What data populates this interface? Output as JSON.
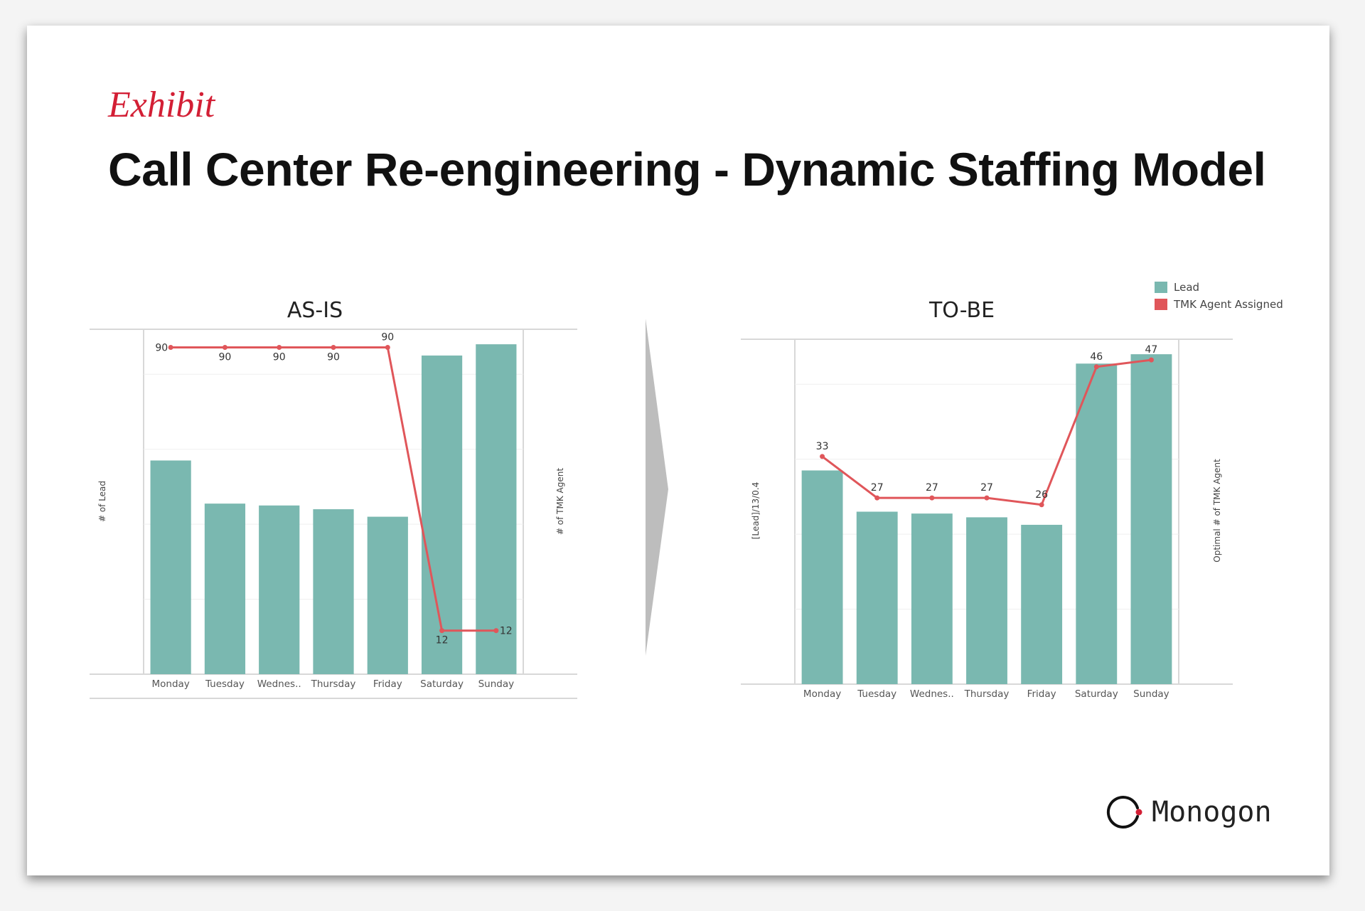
{
  "exhibit_label": "Exhibit",
  "title": "Call Center Re-engineering - Dynamic Staffing Model",
  "brand": "Monogon",
  "colors": {
    "bar": "#7ab8b0",
    "line": "#e0565a",
    "accent": "#d31f35"
  },
  "chart_data": [
    {
      "type": "bar+line",
      "title": "AS-IS",
      "categories": [
        "Monday",
        "Tuesday",
        "Wednes..",
        "Thursday",
        "Friday",
        "Saturday",
        "Sunday"
      ],
      "bar_series": {
        "name": "# of Lead",
        "values": [
          57,
          45.5,
          45,
          44,
          42,
          85,
          88
        ]
      },
      "line_series": {
        "name": "# of TMK Agent",
        "values": [
          90,
          90,
          90,
          90,
          90,
          12,
          12
        ]
      },
      "line_labels": [
        "90",
        "90",
        "90",
        "90",
        "90",
        "12",
        "12"
      ],
      "ylabel_left": "# of Lead",
      "ylabel_right": "# of TMK Agent",
      "ylim": [
        0,
        92
      ],
      "line_ylim": [
        0,
        95
      ]
    },
    {
      "type": "bar+line",
      "title": "TO-BE",
      "categories": [
        "Monday",
        "Tuesday",
        "Wednes..",
        "Thursday",
        "Friday",
        "Saturday",
        "Sunday"
      ],
      "bar_series": {
        "name": "Lead",
        "values": [
          57,
          46,
          45.5,
          44.5,
          42.5,
          85.5,
          88
        ]
      },
      "line_series": {
        "name": "TMK Agent Assigned",
        "values": [
          33,
          27,
          27,
          27,
          26,
          46,
          47
        ]
      },
      "line_labels": [
        "33",
        "27",
        "27",
        "27",
        "26",
        "46",
        "47"
      ],
      "ylabel_left": "[Lead]/13/0.4",
      "ylabel_right": "Optimal # of TMK Agent",
      "ylim": [
        0,
        92
      ],
      "line_ylim": [
        0,
        50
      ],
      "legend": [
        "Lead",
        "TMK Agent Assigned"
      ]
    }
  ]
}
